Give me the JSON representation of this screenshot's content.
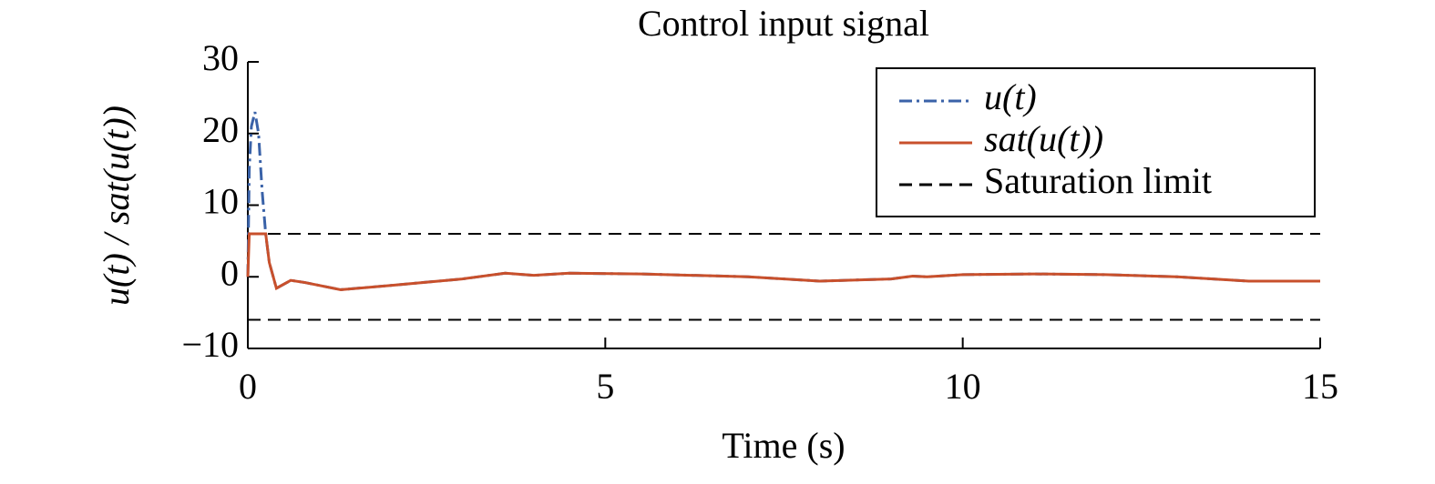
{
  "chart_data": {
    "type": "line",
    "title": "Control input signal",
    "xlabel": "Time (s)",
    "ylabel": "u(t) / sat(u(t))",
    "x": [
      0,
      0.02,
      0.05,
      0.1,
      0.15,
      0.2,
      0.25,
      0.3,
      0.4,
      0.6,
      0.8,
      1.3,
      2,
      3,
      3.6,
      4,
      4.5,
      5.5,
      7,
      8,
      9,
      9.3,
      9.5,
      10,
      11,
      12,
      13,
      14,
      15
    ],
    "series": [
      {
        "name": "u(t)",
        "color": "#3a62a8",
        "style": "dashdot",
        "values": [
          0,
          15,
          21,
          23,
          20,
          12,
          6,
          2,
          -1.6,
          -0.5,
          -0.8,
          -1.8,
          -1.2,
          -0.3,
          0.5,
          0.2,
          0.5,
          0.4,
          0,
          -0.6,
          -0.3,
          0.1,
          0,
          0.3,
          0.4,
          0.3,
          0,
          -0.6,
          -0.6
        ]
      },
      {
        "name": "sat(u(t))",
        "color": "#c8502c",
        "style": "solid",
        "values": [
          0,
          6,
          6,
          6,
          6,
          6,
          6,
          2,
          -1.6,
          -0.5,
          -0.8,
          -1.8,
          -1.2,
          -0.3,
          0.5,
          0.2,
          0.5,
          0.4,
          0,
          -0.6,
          -0.3,
          0.1,
          0,
          0.3,
          0.4,
          0.3,
          0,
          -0.6,
          -0.6
        ]
      }
    ],
    "hlines": {
      "name": "Saturation limit",
      "color": "#000000",
      "style": "dashed",
      "values": [
        6,
        -6
      ]
    },
    "xlim": [
      0,
      15
    ],
    "xticks": [
      0,
      5,
      10,
      15
    ],
    "ylim": [
      -10,
      30
    ],
    "yticks": [
      {
        "value": -10,
        "label": "−10"
      },
      0,
      10,
      20,
      30
    ],
    "legend": "upper right"
  }
}
